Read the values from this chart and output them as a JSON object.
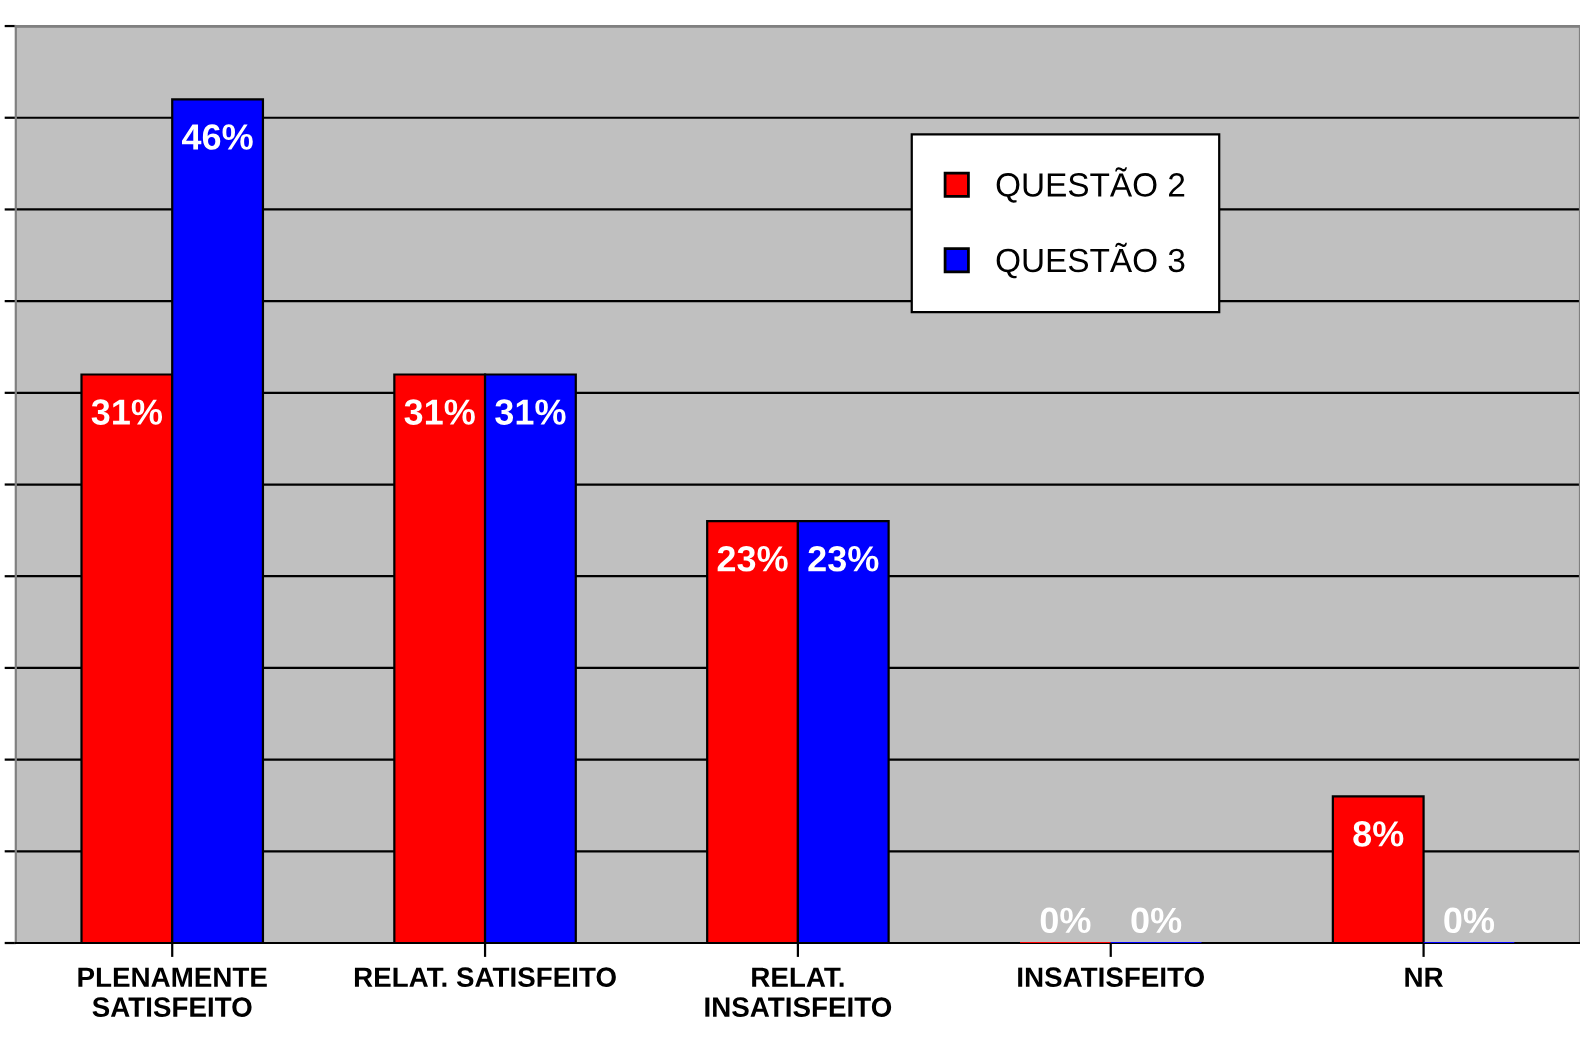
{
  "chart_data": {
    "type": "bar",
    "categories": [
      "PLENAMENTE\nSATISFEITO",
      "RELAT. SATISFEITO",
      "RELAT.\nINSATISFEITO",
      "INSATISFEITO",
      "NR"
    ],
    "series": [
      {
        "name": "QUESTÃO 2",
        "color": "#ff0000",
        "values": [
          31,
          31,
          23,
          0,
          8
        ],
        "value_labels": [
          "31%",
          "31%",
          "23%",
          "0%",
          "8%"
        ]
      },
      {
        "name": "QUESTÃO 3",
        "color": "#0000ff",
        "values": [
          46,
          31,
          23,
          0,
          0
        ],
        "value_labels": [
          "46%",
          "31%",
          "23%",
          "0%",
          "0%"
        ]
      }
    ],
    "ylim": [
      0,
      50
    ],
    "yticks": [
      {
        "value": 0,
        "label": null
      },
      {
        "value": 5,
        "label": null
      },
      {
        "value": 10,
        "label": null
      },
      {
        "value": 15,
        "label": null
      },
      {
        "value": 20,
        "label": null
      },
      {
        "value": 25,
        "label": null
      },
      {
        "value": 30,
        "label": null
      },
      {
        "value": 35,
        "label": null
      },
      {
        "value": 40,
        "label": null
      },
      {
        "value": 45,
        "label": null
      },
      {
        "value": 50,
        "label": null
      }
    ],
    "grid": "y",
    "legend": "top right"
  }
}
